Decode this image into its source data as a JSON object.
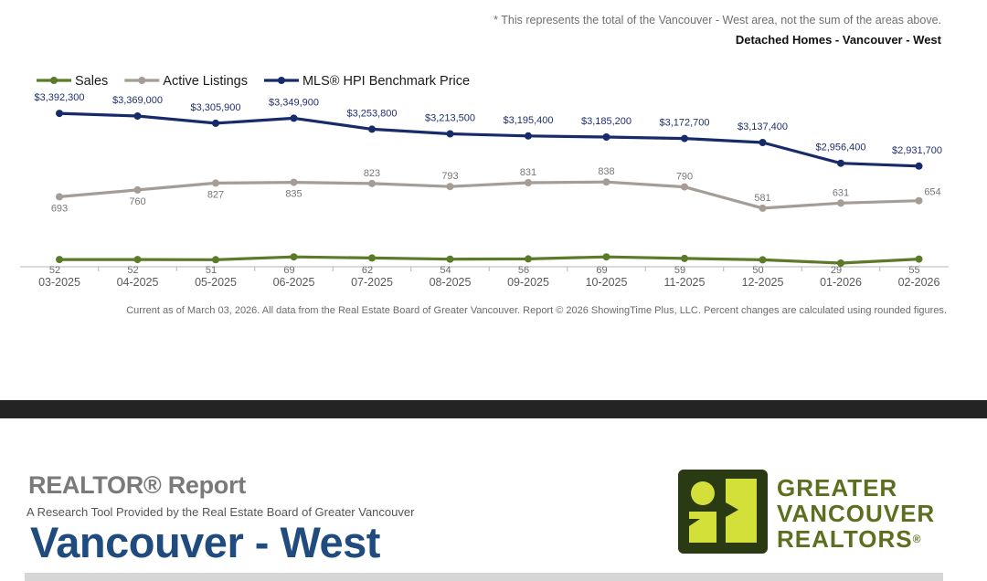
{
  "header": {
    "note": "* This represents the total of the Vancouver - West area, not the sum of the areas above.",
    "subtitle": "Detached Homes - Vancouver - West"
  },
  "chart_data": {
    "type": "line",
    "categories": [
      "03-2025",
      "04-2025",
      "05-2025",
      "06-2025",
      "07-2025",
      "08-2025",
      "09-2025",
      "10-2025",
      "11-2025",
      "12-2025",
      "01-2026",
      "02-2026"
    ],
    "series": [
      {
        "name": "Sales",
        "color": "#5c7a28",
        "values": [
          52,
          52,
          51,
          69,
          62,
          54,
          56,
          69,
          59,
          50,
          29,
          55
        ],
        "labels": [
          "52",
          "52",
          "51",
          "69",
          "62",
          "54",
          "56",
          "69",
          "59",
          "50",
          "29",
          "55"
        ]
      },
      {
        "name": "Active Listings",
        "color": "#a59d95",
        "values": [
          693,
          760,
          827,
          835,
          823,
          793,
          831,
          838,
          790,
          581,
          631,
          654
        ],
        "labels": [
          "693",
          "760",
          "827",
          "835",
          "823",
          "793",
          "831",
          "838",
          "790",
          "581",
          "631",
          "654"
        ]
      },
      {
        "name": "MLS® HPI Benchmark Price",
        "color": "#172b6b",
        "values": [
          3392300,
          3369000,
          3305900,
          3349900,
          3253800,
          3213500,
          3195400,
          3185200,
          3172700,
          3137400,
          2956400,
          2931700
        ],
        "labels": [
          "$3,392,300",
          "$3,369,000",
          "$3,305,900",
          "$3,349,900",
          "$3,253,800",
          "$3,213,500",
          "$3,195,400",
          "$3,185,200",
          "$3,172,700",
          "$3,137,400",
          "$2,956,400",
          "$2,931,700"
        ]
      }
    ],
    "legend_position": "top-left",
    "grid": false
  },
  "footnote": "Current as of March 03, 2026. All data from the Real Estate Board of Greater Vancouver.  Report © 2026 ShowingTime Plus, LLC. Percent changes are calculated using rounded figures.",
  "report": {
    "title": "REALTOR® Report",
    "tagline": "A Research Tool Provided by the Real Estate Board of Greater Vancouver",
    "area": "Vancouver - West"
  },
  "logo": {
    "line1": "GREATER",
    "line2": "VANCOUVER",
    "line3": "REALTORS",
    "reg": "®",
    "dark_color": "#2a3a12",
    "accent_color": "#d4e03a"
  }
}
